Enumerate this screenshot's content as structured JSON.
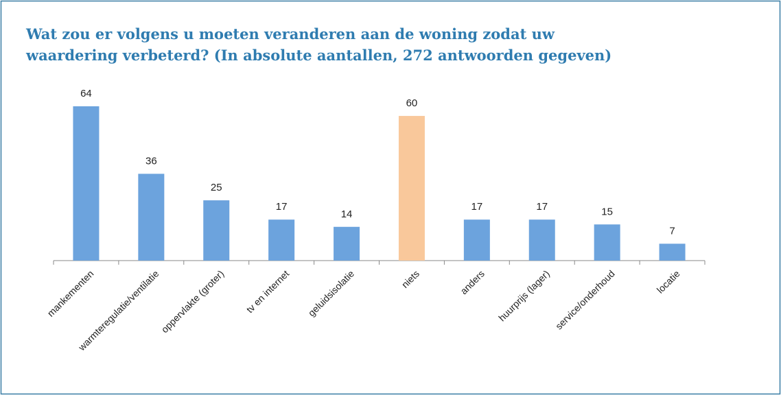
{
  "chart_data": {
    "type": "bar",
    "title": "Wat zou er volgens u moeten veranderen aan de woning zodat uw waardering verbeterd? (In absolute aantallen, 272 antwoorden gegeven)",
    "categories": [
      "mankementen",
      "warmteregulatie/ventilatie",
      "oppervlakte (groter)",
      "tv en internet",
      "geluidsisolatie",
      "niets",
      "anders",
      "huurprijs (lager)",
      "service/onderhoud",
      "locatie"
    ],
    "values": [
      64,
      36,
      25,
      17,
      14,
      60,
      17,
      17,
      15,
      7
    ],
    "colors": [
      "#6ca3dd",
      "#6ca3dd",
      "#6ca3dd",
      "#6ca3dd",
      "#6ca3dd",
      "#f9c89b",
      "#6ca3dd",
      "#6ca3dd",
      "#6ca3dd",
      "#6ca3dd"
    ]
  }
}
